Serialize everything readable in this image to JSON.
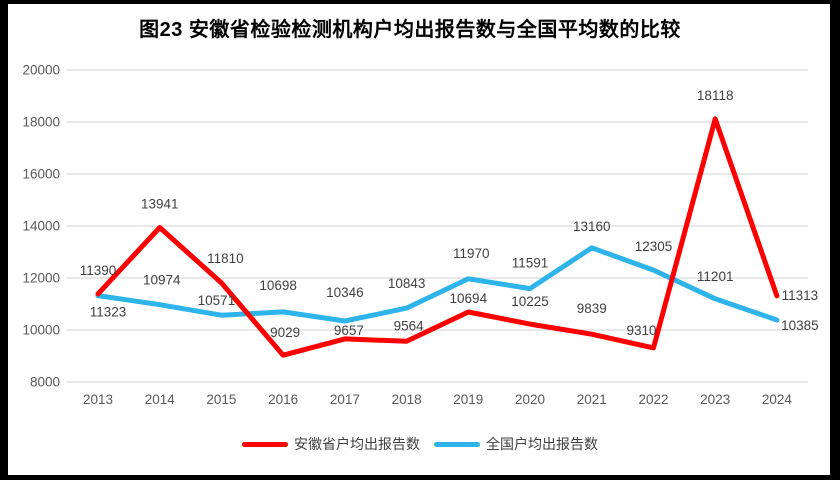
{
  "title": "图23 安徽省检验检测机构户均出报告数与全国平均数的比较",
  "colors": {
    "anhui": "#FF0000",
    "national": "#2EB4EA",
    "gridline": "#D9D9D9",
    "axis_text": "#595959",
    "data_label": "#404040",
    "title_text": "#000000",
    "frame": "#000000",
    "background": "#FFFFFF"
  },
  "legend": [
    {
      "label": "安徽省户均出报告数",
      "color_key": "anhui"
    },
    {
      "label": "全国户均出报告数",
      "color_key": "national"
    }
  ],
  "chart_data": {
    "type": "line",
    "title": "图23 安徽省检验检测机构户均出报告数与全国平均数的比较",
    "categories": [
      "2013",
      "2014",
      "2015",
      "2016",
      "2017",
      "2018",
      "2019",
      "2020",
      "2021",
      "2022",
      "2023",
      "2024"
    ],
    "series": [
      {
        "name": "安徽省户均出报告数",
        "color_key": "anhui",
        "values": [
          11390,
          13941,
          11810,
          9029,
          9657,
          9564,
          10694,
          10225,
          9839,
          9310,
          18118,
          11313
        ]
      },
      {
        "name": "全国户均出报告数",
        "color_key": "national",
        "values": [
          11323,
          10974,
          10571,
          10698,
          10346,
          10843,
          11970,
          11591,
          13160,
          12305,
          11201,
          10385
        ]
      }
    ],
    "xlabel": "",
    "ylabel": "",
    "ylim": [
      8000,
      20000
    ],
    "yticks": [
      8000,
      10000,
      12000,
      14000,
      16000,
      18000,
      20000
    ],
    "grid": true,
    "data_labels": true,
    "legend_position": "bottom"
  }
}
